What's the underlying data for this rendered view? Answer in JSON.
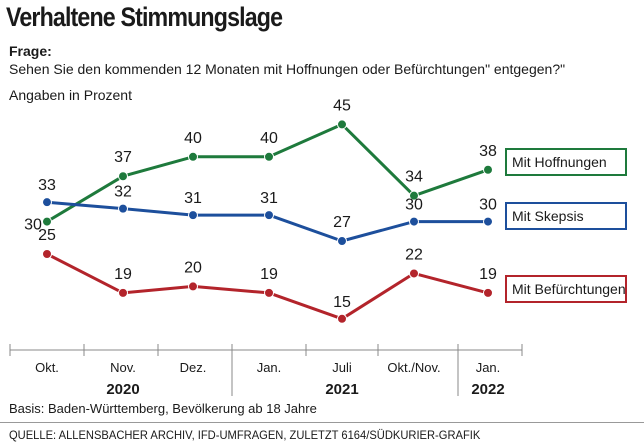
{
  "chart_data": {
    "type": "line",
    "title": "Verhaltene Stimmungslage",
    "question_label": "Frage:",
    "question": "Sehen Sie den kommenden 12 Monaten mit Hoffnungen oder Befürchtungen\" entgegen?\"",
    "unit_note": "Angaben in Prozent",
    "categories": [
      "Okt.",
      "Nov.",
      "Dez.",
      "Jan.",
      "Juli",
      "Okt./Nov.",
      "Jan."
    ],
    "years": [
      {
        "label": "2020",
        "from": 0,
        "to": 2
      },
      {
        "label": "2021",
        "from": 3,
        "to": 5
      },
      {
        "label": "2022",
        "from": 6,
        "to": 6
      }
    ],
    "ylim": [
      10,
      50
    ],
    "series": [
      {
        "name": "Mit Hoffnungen",
        "color": "#1e7a3c",
        "values": [
          30,
          37,
          40,
          40,
          45,
          34,
          38
        ]
      },
      {
        "name": "Mit Skepsis",
        "color": "#1d4f9c",
        "values": [
          33,
          32,
          31,
          31,
          27,
          30,
          30
        ]
      },
      {
        "name": "Mit Befürchtungen",
        "color": "#b3242b",
        "values": [
          25,
          19,
          20,
          19,
          15,
          22,
          19
        ]
      }
    ],
    "basis": "Basis: Baden-Württemberg, Bevölkerung ab 18 Jahre",
    "source": "QUELLE: ALLENSBACHER ARCHIV, IFD-UMFRAGEN, ZULETZT 6164/SÜDKURIER-GRAFIK"
  }
}
